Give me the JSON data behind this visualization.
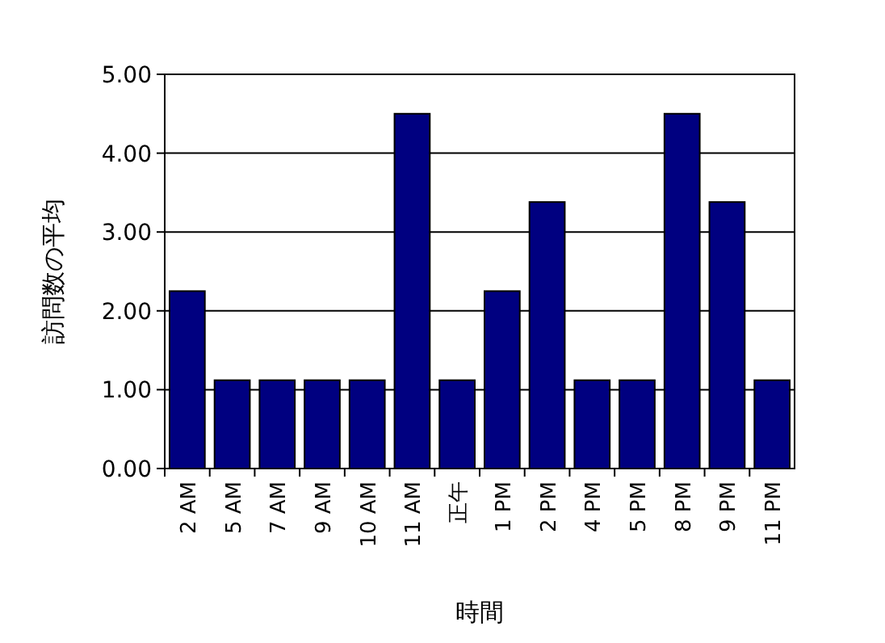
{
  "chart_data": {
    "type": "bar",
    "xlabel": "時間",
    "ylabel": "訪問数の平均",
    "categories": [
      "2 AM",
      "5 AM",
      "7 AM",
      "9 AM",
      "10 AM",
      "11 AM",
      "正午",
      "1 PM",
      "2 PM",
      "4 PM",
      "5 PM",
      "8 PM",
      "9 PM",
      "11 PM"
    ],
    "values": [
      2.25,
      1.12,
      1.12,
      1.12,
      1.12,
      4.5,
      1.12,
      2.25,
      3.38,
      1.12,
      1.12,
      4.5,
      3.38,
      1.12
    ],
    "color": "#000080",
    "ylim": [
      0,
      5
    ],
    "yticks": [
      {
        "value": 0,
        "label": "0.00"
      },
      {
        "value": 1,
        "label": "1.00"
      },
      {
        "value": 2,
        "label": "2.00"
      },
      {
        "value": 3,
        "label": "3.00"
      },
      {
        "value": 4,
        "label": "4.00"
      },
      {
        "value": 5,
        "label": "5.00"
      }
    ],
    "grid": "y"
  }
}
